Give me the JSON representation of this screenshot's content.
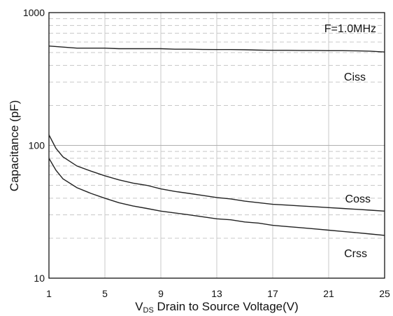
{
  "chart_data": {
    "type": "line",
    "xlabel": {
      "prefix": "V",
      "subscript": "DS",
      "text": " Drain to Source Voltage(V)"
    },
    "ylabel": "Capacitance (pF)",
    "annotation": "F=1.0MHz",
    "xlim": [
      1,
      25
    ],
    "ylim": [
      10,
      1000
    ],
    "yscale": "log",
    "x_ticks": [
      "1",
      "5",
      "9",
      "13",
      "17",
      "21",
      "25"
    ],
    "y_ticks": [
      "10",
      "100",
      "1000"
    ],
    "grid": true,
    "series": [
      {
        "name": "Ciss",
        "x": [
          1,
          2,
          3,
          4,
          5,
          6,
          7,
          8,
          9,
          10,
          11,
          12,
          13,
          14,
          15,
          16,
          17,
          18,
          19,
          20,
          21,
          22,
          23,
          24,
          25
        ],
        "y": [
          560,
          550,
          540,
          540,
          540,
          535,
          535,
          535,
          535,
          530,
          530,
          528,
          527,
          527,
          525,
          522,
          520,
          520,
          518,
          518,
          517,
          517,
          515,
          512,
          505
        ]
      },
      {
        "name": "Coss",
        "x": [
          1,
          1.5,
          2,
          3,
          4,
          5,
          6,
          7,
          8,
          9,
          10,
          11,
          12,
          13,
          14,
          15,
          16,
          17,
          18,
          19,
          20,
          21,
          22,
          23,
          24,
          25
        ],
        "y": [
          120,
          95,
          82,
          70,
          64,
          59,
          55,
          52,
          50,
          47,
          45,
          43.5,
          42,
          40.5,
          39.5,
          38,
          37,
          36,
          35.5,
          35,
          34.5,
          34,
          33.5,
          33,
          32.5,
          32
        ]
      },
      {
        "name": "Crss",
        "x": [
          1,
          1.5,
          2,
          3,
          4,
          5,
          6,
          7,
          8,
          9,
          10,
          11,
          12,
          13,
          14,
          15,
          16,
          17,
          18,
          19,
          20,
          21,
          22,
          23,
          24,
          25
        ],
        "y": [
          80,
          65,
          56,
          48,
          43.5,
          40,
          37,
          35,
          33.5,
          32,
          31,
          30,
          29,
          28,
          27.5,
          26.5,
          26,
          25,
          24.5,
          24,
          23.5,
          23,
          22.5,
          22,
          21.5,
          21
        ]
      }
    ]
  }
}
